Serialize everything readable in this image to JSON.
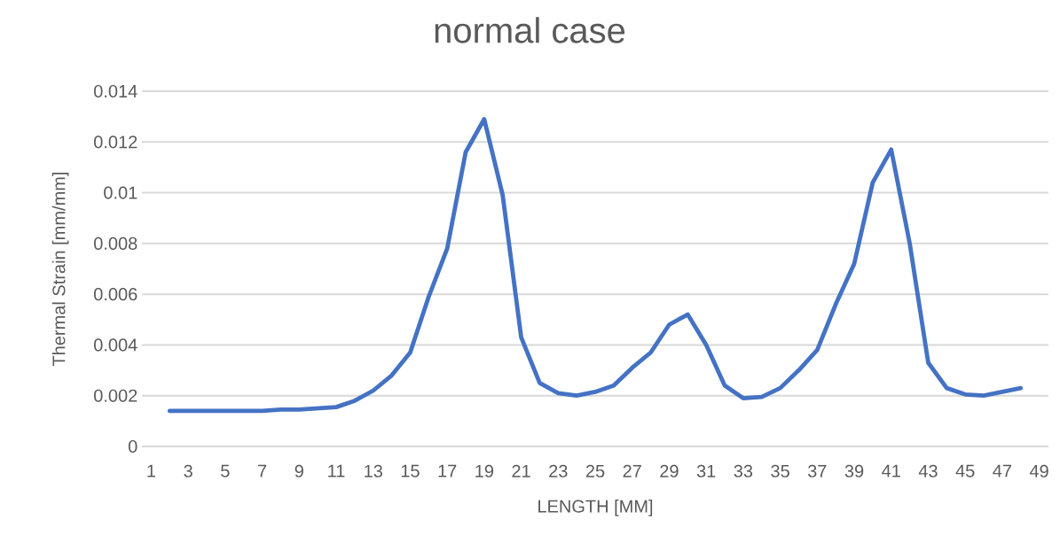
{
  "chart_data": {
    "type": "line",
    "title": "normal case",
    "xlabel": "LENGTH [MM]",
    "ylabel": "Thermal Strain  [mm/mm]",
    "categories": [
      "1",
      null,
      "3",
      null,
      "5",
      null,
      "7",
      null,
      "9",
      null,
      "11",
      null,
      "13",
      null,
      "15",
      null,
      "17",
      null,
      "19",
      null,
      "21",
      null,
      "23",
      null,
      "25",
      null,
      "27",
      null,
      "29",
      null,
      "31",
      null,
      "33",
      null,
      "35",
      null,
      "37",
      null,
      "39",
      null,
      "41",
      null,
      "43",
      null,
      "45",
      null,
      "47",
      null,
      "49"
    ],
    "series": [
      {
        "color": "#4472c4",
        "values": [
          null,
          0.0014,
          0.0014,
          0.0014,
          0.0014,
          0.0014,
          0.0014,
          0.00145,
          0.00145,
          0.0015,
          0.00155,
          0.0018,
          0.0022,
          0.0028,
          0.0037,
          0.0059,
          0.0078,
          0.0116,
          0.0129,
          0.0099,
          0.0043,
          0.0025,
          0.0021,
          0.002,
          0.00215,
          0.0024,
          0.0031,
          0.0037,
          0.0048,
          0.0052,
          0.004,
          0.0024,
          0.0019,
          0.00195,
          0.0023,
          0.003,
          0.0038,
          0.0056,
          0.0072,
          0.0104,
          0.0117,
          0.008,
          0.0033,
          0.0023,
          0.00205,
          0.002,
          0.00215,
          0.0023,
          null
        ]
      }
    ],
    "ylim": [
      0,
      0.014
    ],
    "yticks": [
      0,
      0.002,
      0.004,
      0.006,
      0.008,
      0.01,
      0.012,
      0.014
    ],
    "grid": "y"
  }
}
